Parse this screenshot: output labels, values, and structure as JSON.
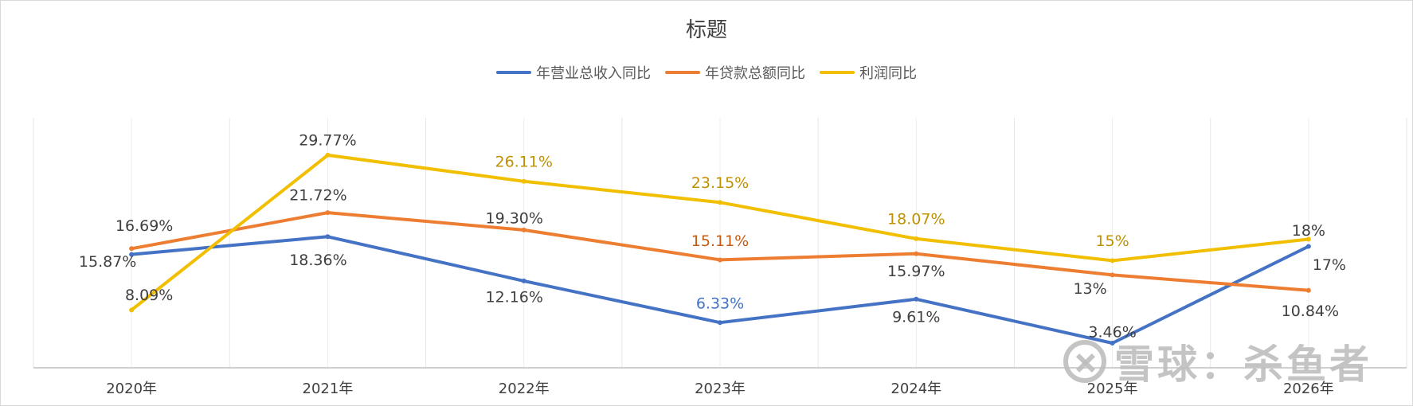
{
  "chart_data": {
    "type": "line",
    "title": "标题",
    "categories": [
      "2020年",
      "2021年",
      "2022年",
      "2023年",
      "2024年",
      "2025年",
      "2026年"
    ],
    "series": [
      {
        "name": "年营业总收入同比",
        "color": "#4472C4",
        "values": [
          15.87,
          18.36,
          12.16,
          6.33,
          9.61,
          3.46,
          17
        ],
        "labels": [
          "15.87%",
          "18.36%",
          "12.16%",
          "6.33%",
          "9.61%",
          "3.46%",
          "17%"
        ],
        "label_colors": [
          "#404040",
          "#404040",
          "#404040",
          "#4472C4",
          "#404040",
          "#404040",
          "#404040"
        ]
      },
      {
        "name": "年贷款总额同比",
        "color": "#ED7D31",
        "values": [
          16.69,
          21.72,
          19.3,
          15.11,
          15.97,
          13,
          10.84
        ],
        "labels": [
          "16.69%",
          "21.72%",
          "19.30%",
          "15.11%",
          "15.97%",
          "13%",
          "10.84%"
        ],
        "label_colors": [
          "#404040",
          "#404040",
          "#404040",
          "#C55A11",
          "#404040",
          "#404040",
          "#404040"
        ]
      },
      {
        "name": "利润同比",
        "color": "#F2BF00",
        "values": [
          8.09,
          29.77,
          26.11,
          23.15,
          18.07,
          15,
          18
        ],
        "labels": [
          "8.09%",
          "29.77%",
          "26.11%",
          "23.15%",
          "18.07%",
          "15%",
          "18%"
        ],
        "label_colors": [
          "#404040",
          "#404040",
          "#BF9000",
          "#BF9000",
          "#BF9000",
          "#BF9000",
          "#404040"
        ]
      }
    ],
    "ylim": [
      0,
      35
    ],
    "grid": true,
    "legend_position": "top"
  },
  "watermark": {
    "text": "雪球：杀鱼者"
  }
}
